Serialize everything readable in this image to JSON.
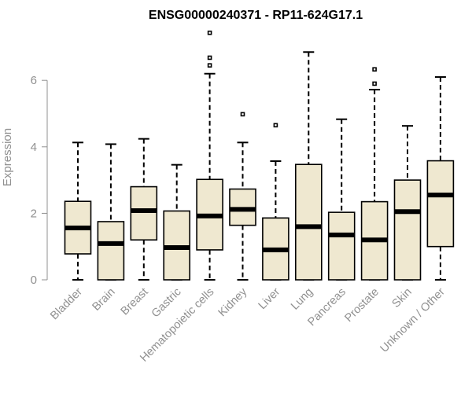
{
  "chart_data": {
    "type": "box",
    "title": "ENSG00000240371 - RP11-624G17.1",
    "ylabel": "Expression",
    "xlabel": "",
    "ylim": [
      0,
      7.5
    ],
    "yticks": [
      0,
      2,
      4,
      6
    ],
    "categories": [
      "Bladder",
      "Brain",
      "Breast",
      "Gastric",
      "Hematopoietic cells",
      "Kidney",
      "Liver",
      "Lung",
      "Pancreas",
      "Prostate",
      "Skin",
      "Unknown / Other"
    ],
    "boxes": [
      {
        "min": 0.0,
        "q1": 0.78,
        "median": 1.56,
        "q3": 2.36,
        "max": 4.13,
        "outliers": []
      },
      {
        "min": 0.0,
        "q1": 0.0,
        "median": 1.09,
        "q3": 1.75,
        "max": 4.08,
        "outliers": []
      },
      {
        "min": 0.0,
        "q1": 1.2,
        "median": 2.08,
        "q3": 2.8,
        "max": 4.24,
        "outliers": []
      },
      {
        "min": 0.0,
        "q1": 0.0,
        "median": 0.97,
        "q3": 2.07,
        "max": 3.46,
        "outliers": []
      },
      {
        "min": 0.0,
        "q1": 0.9,
        "median": 1.92,
        "q3": 3.02,
        "max": 6.2,
        "outliers": [
          6.45,
          6.68,
          7.43
        ]
      },
      {
        "min": 0.0,
        "q1": 1.64,
        "median": 2.12,
        "q3": 2.73,
        "max": 4.13,
        "outliers": [
          4.98
        ]
      },
      {
        "min": 0.0,
        "q1": 0.0,
        "median": 0.9,
        "q3": 1.86,
        "max": 3.57,
        "outliers": [
          4.65
        ]
      },
      {
        "min": 0.0,
        "q1": 0.0,
        "median": 1.6,
        "q3": 3.47,
        "max": 6.85,
        "outliers": []
      },
      {
        "min": 0.0,
        "q1": 0.0,
        "median": 1.35,
        "q3": 2.03,
        "max": 4.83,
        "outliers": []
      },
      {
        "min": 0.0,
        "q1": 0.0,
        "median": 1.2,
        "q3": 2.35,
        "max": 5.72,
        "outliers": [
          5.9,
          6.33
        ]
      },
      {
        "min": 0.0,
        "q1": 0.0,
        "median": 2.05,
        "q3": 3.0,
        "max": 4.63,
        "outliers": []
      },
      {
        "min": 0.0,
        "q1": 1.0,
        "median": 2.55,
        "q3": 3.58,
        "max": 6.1,
        "outliers": []
      }
    ],
    "box_color": "#efe8d0",
    "axis_color": "#909090",
    "grid": false,
    "legend": "none"
  }
}
